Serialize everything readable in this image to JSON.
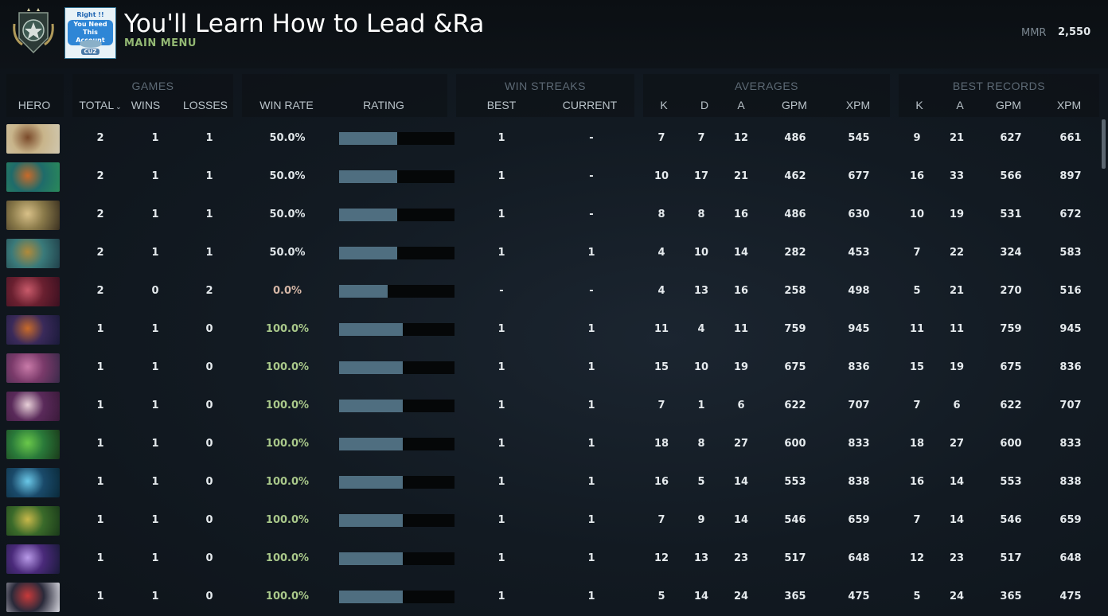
{
  "header": {
    "title": "You'll Learn How to Lead &Ra",
    "subtitle": "MAIN MENU",
    "mmr_label": "MMR",
    "mmr_value": "2,550",
    "avatar_text": {
      "line1": "Right !!",
      "line2": "You Need This Account",
      "tag": "CUZ"
    }
  },
  "groups": {
    "games": "GAMES",
    "win_streaks": "WIN STREAKS",
    "averages": "AVERAGES",
    "best_records": "BEST RECORDS"
  },
  "columns": {
    "hero": "HERO",
    "total": "TOTAL",
    "wins": "WINS",
    "losses": "LOSSES",
    "win_rate": "WIN RATE",
    "rating": "RATING",
    "best": "BEST",
    "current": "CURRENT",
    "avg_k": "K",
    "avg_d": "D",
    "avg_a": "A",
    "avg_gpm": "GPM",
    "avg_xpm": "XPM",
    "best_k": "K",
    "best_a": "A",
    "best_gpm": "GPM",
    "best_xpm": "XPM"
  },
  "rows": [
    {
      "hero_colors": [
        "#c8b48a",
        "#7a4a2a",
        "#d0c8b0"
      ],
      "total": "2",
      "wins": "1",
      "losses": "1",
      "win_rate": "50.0%",
      "rating": 0.5,
      "best": "1",
      "current": "-",
      "k": "7",
      "d": "7",
      "a": "12",
      "gpm": "486",
      "xpm": "545",
      "bk": "9",
      "ba": "21",
      "bgpm": "627",
      "bxpm": "661"
    },
    {
      "hero_colors": [
        "#1f6b6a",
        "#c86a2a",
        "#2a8a5a"
      ],
      "total": "2",
      "wins": "1",
      "losses": "1",
      "win_rate": "50.0%",
      "rating": 0.5,
      "best": "1",
      "current": "-",
      "k": "10",
      "d": "17",
      "a": "21",
      "gpm": "462",
      "xpm": "677",
      "bk": "16",
      "ba": "33",
      "bgpm": "566",
      "bxpm": "897"
    },
    {
      "hero_colors": [
        "#8a7a4a",
        "#d8c088",
        "#3a3020"
      ],
      "total": "2",
      "wins": "1",
      "losses": "1",
      "win_rate": "50.0%",
      "rating": 0.5,
      "best": "1",
      "current": "-",
      "k": "8",
      "d": "8",
      "a": "16",
      "gpm": "486",
      "xpm": "630",
      "bk": "10",
      "ba": "19",
      "bgpm": "531",
      "bxpm": "672"
    },
    {
      "hero_colors": [
        "#3a7a7a",
        "#b08a3a",
        "#20404a"
      ],
      "total": "2",
      "wins": "1",
      "losses": "1",
      "win_rate": "50.0%",
      "rating": 0.5,
      "best": "1",
      "current": "1",
      "k": "4",
      "d": "10",
      "a": "14",
      "gpm": "282",
      "xpm": "453",
      "bk": "7",
      "ba": "22",
      "bgpm": "324",
      "bxpm": "583"
    },
    {
      "hero_colors": [
        "#6a2030",
        "#c85a6a",
        "#3a1020"
      ],
      "total": "2",
      "wins": "0",
      "losses": "2",
      "win_rate": "0.0%",
      "rating": 0.42,
      "best": "-",
      "current": "-",
      "k": "4",
      "d": "13",
      "a": "16",
      "gpm": "258",
      "xpm": "498",
      "bk": "5",
      "ba": "21",
      "bgpm": "270",
      "bxpm": "516"
    },
    {
      "hero_colors": [
        "#3a2a5a",
        "#c86a2a",
        "#1a1a3a"
      ],
      "total": "1",
      "wins": "1",
      "losses": "0",
      "win_rate": "100.0%",
      "rating": 0.55,
      "best": "1",
      "current": "1",
      "k": "11",
      "d": "4",
      "a": "11",
      "gpm": "759",
      "xpm": "945",
      "bk": "11",
      "ba": "11",
      "bgpm": "759",
      "bxpm": "945"
    },
    {
      "hero_colors": [
        "#7a3a6a",
        "#c87aa8",
        "#3a2a4a"
      ],
      "total": "1",
      "wins": "1",
      "losses": "0",
      "win_rate": "100.0%",
      "rating": 0.55,
      "best": "1",
      "current": "1",
      "k": "15",
      "d": "10",
      "a": "19",
      "gpm": "675",
      "xpm": "836",
      "bk": "15",
      "ba": "19",
      "bgpm": "675",
      "bxpm": "836"
    },
    {
      "hero_colors": [
        "#5a2a5a",
        "#e8d0d8",
        "#3a1a3a"
      ],
      "total": "1",
      "wins": "1",
      "losses": "0",
      "win_rate": "100.0%",
      "rating": 0.55,
      "best": "1",
      "current": "1",
      "k": "7",
      "d": "1",
      "a": "6",
      "gpm": "622",
      "xpm": "707",
      "bk": "7",
      "ba": "6",
      "bgpm": "622",
      "bxpm": "707"
    },
    {
      "hero_colors": [
        "#2a7a3a",
        "#6ac84a",
        "#1a3a1a"
      ],
      "total": "1",
      "wins": "1",
      "losses": "0",
      "win_rate": "100.0%",
      "rating": 0.55,
      "best": "1",
      "current": "1",
      "k": "18",
      "d": "8",
      "a": "27",
      "gpm": "600",
      "xpm": "833",
      "bk": "18",
      "ba": "27",
      "bgpm": "600",
      "bxpm": "833"
    },
    {
      "hero_colors": [
        "#1a4a6a",
        "#6ac8e8",
        "#0a2a3a"
      ],
      "total": "1",
      "wins": "1",
      "losses": "0",
      "win_rate": "100.0%",
      "rating": 0.55,
      "best": "1",
      "current": "1",
      "k": "16",
      "d": "5",
      "a": "14",
      "gpm": "553",
      "xpm": "838",
      "bk": "16",
      "ba": "14",
      "bgpm": "553",
      "bxpm": "838"
    },
    {
      "hero_colors": [
        "#3a6a2a",
        "#c8b84a",
        "#1a3a1a"
      ],
      "total": "1",
      "wins": "1",
      "losses": "0",
      "win_rate": "100.0%",
      "rating": 0.55,
      "best": "1",
      "current": "1",
      "k": "7",
      "d": "9",
      "a": "14",
      "gpm": "546",
      "xpm": "659",
      "bk": "7",
      "ba": "14",
      "bgpm": "546",
      "bxpm": "659"
    },
    {
      "hero_colors": [
        "#4a2a7a",
        "#b89ae8",
        "#1a1a3a"
      ],
      "total": "1",
      "wins": "1",
      "losses": "0",
      "win_rate": "100.0%",
      "rating": 0.55,
      "best": "1",
      "current": "1",
      "k": "12",
      "d": "13",
      "a": "23",
      "gpm": "517",
      "xpm": "648",
      "bk": "12",
      "ba": "23",
      "bgpm": "517",
      "bxpm": "648"
    },
    {
      "hero_colors": [
        "#2a2a3a",
        "#c83a3a",
        "#d8d8e0"
      ],
      "total": "1",
      "wins": "1",
      "losses": "0",
      "win_rate": "100.0%",
      "rating": 0.55,
      "best": "1",
      "current": "1",
      "k": "5",
      "d": "14",
      "a": "24",
      "gpm": "365",
      "xpm": "475",
      "bk": "5",
      "ba": "24",
      "bgpm": "365",
      "bxpm": "475"
    }
  ]
}
